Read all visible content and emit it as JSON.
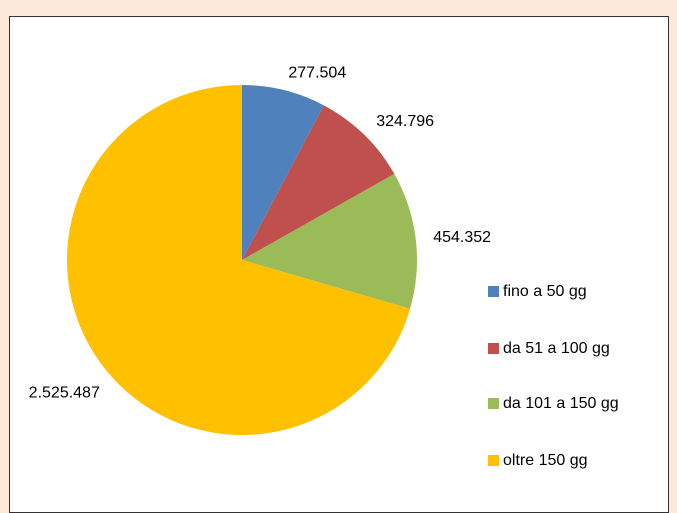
{
  "chart_data": {
    "type": "pie",
    "categories": [
      "fino a 50 gg",
      "da 51 a 100 gg",
      "da 101 a 150 gg",
      "oltre 150 gg"
    ],
    "values": [
      277504,
      324796,
      454352,
      2525487
    ],
    "value_labels": [
      "277.504",
      "324.796",
      "454.352",
      "2.525.487"
    ],
    "colors": [
      "#4f81bd",
      "#c0504d",
      "#9bbb59",
      "#ffc000"
    ],
    "legend": "right"
  }
}
